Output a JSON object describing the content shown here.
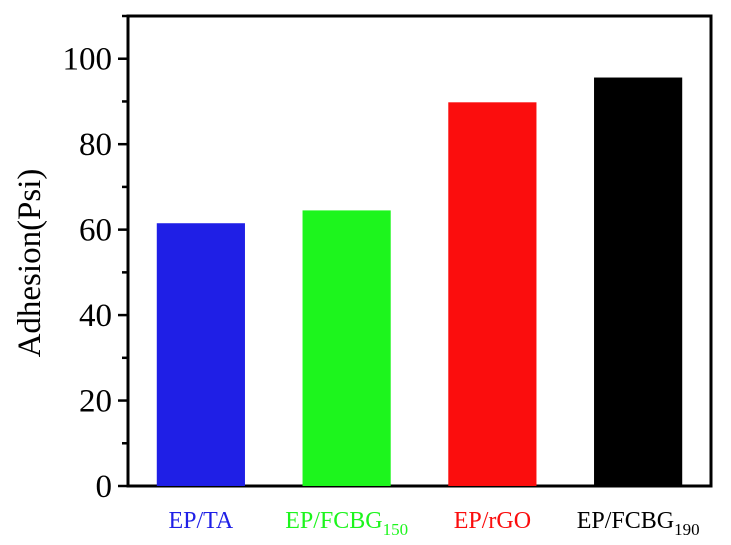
{
  "chart_data": {
    "type": "bar",
    "title": "",
    "xlabel": "",
    "ylabel": "Adhesion(Psi)",
    "ylim": [
      0,
      110
    ],
    "yticks": [
      0,
      20,
      40,
      60,
      80,
      100
    ],
    "grid": false,
    "categories": [
      {
        "base": "EP/TA",
        "sub": "",
        "color": "#1f1fe6"
      },
      {
        "base": "EP/FCBG",
        "sub": "150",
        "color": "#1df51d"
      },
      {
        "base": "EP/rGO",
        "sub": "",
        "color": "#fb0d0d"
      },
      {
        "base": "EP/FCBG",
        "sub": "190",
        "color": "#000000"
      }
    ],
    "values": [
      61.5,
      64.5,
      89.8,
      95.6
    ]
  }
}
